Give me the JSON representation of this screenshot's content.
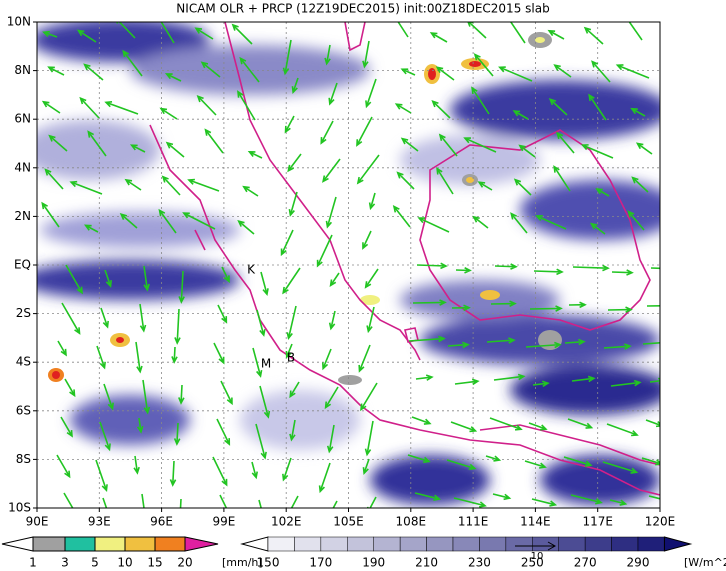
{
  "title": "NICAM OLR + PRCP (12Z19DEC2015) init:00Z18DEC2015 slab",
  "map": {
    "lon_labels": [
      "90E",
      "93E",
      "96E",
      "99E",
      "102E",
      "105E",
      "108E",
      "111E",
      "114E",
      "117E",
      "120E"
    ],
    "lat_labels": [
      "10N",
      "8N",
      "6N",
      "4N",
      "2N",
      "EQ",
      "2S",
      "4S",
      "6S",
      "8S",
      "10S"
    ],
    "markers": [
      "K",
      "M",
      "B"
    ]
  },
  "precip_legend": {
    "labels": [
      "1",
      "3",
      "5",
      "10",
      "15",
      "20"
    ],
    "unit": "[mm/h]"
  },
  "olr_legend": {
    "labels": [
      "150",
      "170",
      "190",
      "210",
      "230",
      "250",
      "270",
      "290"
    ],
    "unit": "[W/m^2]"
  },
  "vector_reference": "10"
}
